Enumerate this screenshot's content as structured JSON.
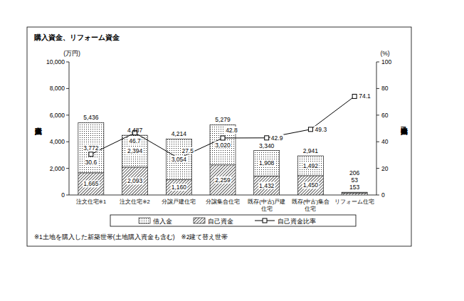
{
  "chart_data": {
    "type": "bar",
    "title": "購入資金、リフォーム資金",
    "categories": [
      "注文住宅※1",
      "注文住宅※2",
      "分譲戸建住宅",
      "分譲集合住宅",
      "既存(中古)戸建住宅",
      "既存(中古)集合住宅",
      "リフォーム住宅"
    ],
    "stacked": true,
    "series": [
      {
        "name": "自己資金",
        "type": "bar",
        "color": "#000000",
        "values": [
          1665,
          2093,
          1160,
          2259,
          1432,
          1450,
          153
        ],
        "value_labels": [
          "1,665",
          "2,093",
          "1,160",
          "2,259",
          "1,432",
          "1,450",
          "153"
        ]
      },
      {
        "name": "借入金",
        "type": "bar",
        "color": "#000000",
        "values": [
          3772,
          2394,
          3054,
          3020,
          1908,
          1492,
          53
        ],
        "value_labels": [
          "3,772",
          "2,394",
          "3,054",
          "3,020",
          "1,908",
          "1,492",
          "53"
        ]
      },
      {
        "name": "自己資金比率",
        "type": "line",
        "axis": "y2",
        "color": "#000000",
        "marker": "square",
        "values": [
          30.6,
          46.7,
          27.5,
          42.8,
          42.9,
          49.3,
          74.1
        ]
      }
    ],
    "totals": [
      5436,
      4487,
      4214,
      5279,
      3340,
      2941,
      206
    ],
    "total_labels": [
      "5,436",
      "4,487",
      "4,214",
      "5,279",
      "3,340",
      "2,941",
      "206"
    ],
    "ylabel": "購入資金",
    "yunit": "(万円)",
    "y2label": "自己資金比率",
    "y2unit": "(%)",
    "ylim": [
      0,
      10000
    ],
    "yticks": [
      0,
      {
        "value": 2000,
        "label": "2,000"
      },
      {
        "value": 4000,
        "label": "4,000"
      },
      {
        "value": 6000,
        "label": "6,000"
      },
      {
        "value": 8000,
        "label": "8,000"
      },
      {
        "value": 10000,
        "label": "10,000"
      }
    ],
    "y2lim": [
      0,
      100
    ],
    "y2ticks": [
      0,
      20,
      40,
      60,
      80,
      100
    ],
    "data_labels": true,
    "grid": false,
    "legend": "bottom",
    "note": "※1土地を購入した新築世帯(土地購入資金も含む)　※2建て替え世帯"
  }
}
